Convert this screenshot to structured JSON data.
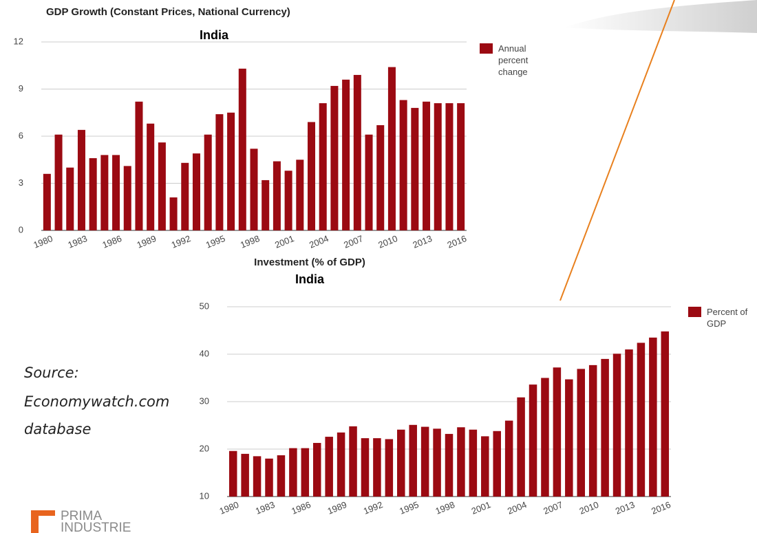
{
  "chart_data": [
    {
      "type": "bar",
      "title": "GDP Growth (Constant Prices, National Currency)",
      "subtitle": "India",
      "categories": [
        "1980",
        null,
        null,
        "1983",
        null,
        null,
        "1986",
        null,
        null,
        "1989",
        null,
        null,
        "1992",
        null,
        null,
        "1995",
        null,
        null,
        "1998",
        null,
        null,
        "2001",
        null,
        null,
        "2004",
        null,
        null,
        "2007",
        null,
        null,
        "2010",
        null,
        null,
        "2013",
        null,
        null,
        "2016"
      ],
      "series": [
        {
          "name": "Annual percent change",
          "color": "#9b0a12",
          "values": [
            3.6,
            6.1,
            4.0,
            6.4,
            4.6,
            4.8,
            4.8,
            4.1,
            8.2,
            6.8,
            5.6,
            2.1,
            4.3,
            4.9,
            6.1,
            7.4,
            7.5,
            10.3,
            5.2,
            3.2,
            4.4,
            3.8,
            4.5,
            6.9,
            8.1,
            9.2,
            9.6,
            9.9,
            6.1,
            6.7,
            10.4,
            8.3,
            7.8,
            8.2,
            8.1,
            8.1,
            8.1
          ]
        }
      ],
      "ylim": [
        0,
        12
      ],
      "yticks": [
        0,
        3,
        6,
        9,
        12
      ],
      "grid": true,
      "legend": "right"
    },
    {
      "type": "bar",
      "title": "Investment (% of GDP)",
      "subtitle": "India",
      "categories": [
        "1980",
        null,
        null,
        "1983",
        null,
        null,
        "1986",
        null,
        null,
        "1989",
        null,
        null,
        "1992",
        null,
        null,
        "1995",
        null,
        null,
        "1998",
        null,
        null,
        "2001",
        null,
        null,
        "2004",
        null,
        null,
        "2007",
        null,
        null,
        "2010",
        null,
        null,
        "2013",
        null,
        null,
        "2016"
      ],
      "series": [
        {
          "name": "Percent of GDP",
          "color": "#9b0a12",
          "values": [
            19.6,
            19.0,
            18.5,
            18.0,
            18.7,
            20.2,
            20.2,
            21.3,
            22.6,
            23.5,
            24.8,
            22.3,
            22.3,
            22.1,
            24.1,
            25.1,
            24.7,
            24.3,
            23.2,
            24.6,
            24.1,
            22.7,
            23.8,
            26.0,
            30.9,
            33.6,
            35.0,
            37.2,
            34.7,
            36.9,
            37.7,
            39.0,
            40.1,
            41.0,
            42.4,
            43.5,
            44.8
          ]
        }
      ],
      "ylim": [
        10,
        50
      ],
      "yticks": [
        10,
        20,
        30,
        40,
        50
      ],
      "grid": true,
      "legend": "right"
    }
  ],
  "source": [
    "Source:",
    "Economywatch.com",
    "database"
  ],
  "logo": [
    "PRIMA",
    "INDUSTRIE"
  ]
}
